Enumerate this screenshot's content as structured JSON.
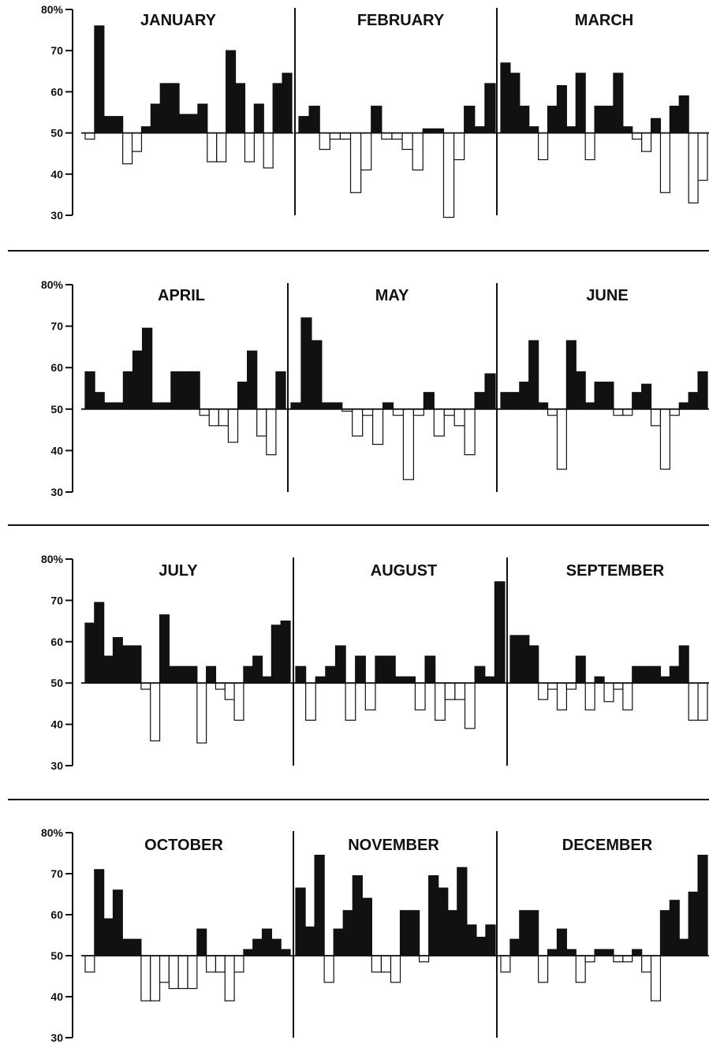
{
  "chart_data": {
    "type": "bar",
    "baseline": 50,
    "ylim": [
      30,
      80
    ],
    "y_ticks": [
      {
        "value": 80,
        "label": "80%"
      },
      {
        "value": 70,
        "label": "70"
      },
      {
        "value": 60,
        "label": "60"
      },
      {
        "value": 50,
        "label": "50"
      },
      {
        "value": 40,
        "label": "40"
      },
      {
        "value": 30,
        "label": "30"
      }
    ],
    "style": {
      "above_baseline_fill": "#111111",
      "below_baseline_fill": "#ffffff",
      "bar_outline": "#111111"
    },
    "months": [
      {
        "title": "JANUARY",
        "values": [
          48.5,
          76,
          54,
          54,
          42.5,
          45.5,
          51.5,
          57,
          62,
          62,
          54.5,
          54.5,
          57,
          43,
          43,
          70,
          62,
          43,
          57,
          41.5,
          62,
          64.5
        ]
      },
      {
        "title": "FEBRUARY",
        "values": [
          54,
          56.5,
          46,
          48.5,
          48.5,
          35.5,
          41,
          56.5,
          48.5,
          48.5,
          46,
          41,
          51,
          51,
          29.5,
          43.5,
          56.5,
          51.5,
          62
        ]
      },
      {
        "title": "MARCH",
        "values": [
          67,
          64.5,
          56.5,
          51.5,
          43.5,
          56.5,
          61.5,
          51.5,
          64.5,
          43.5,
          56.5,
          56.5,
          64.5,
          51.5,
          48.5,
          45.5,
          53.5,
          35.5,
          56.5,
          59,
          33,
          38.5
        ]
      },
      {
        "title": "APRIL",
        "values": [
          59,
          54,
          51.5,
          51.5,
          59,
          64,
          69.5,
          51.5,
          51.5,
          59,
          59,
          59,
          48.5,
          46,
          46,
          42,
          56.5,
          64,
          43.5,
          39,
          59
        ]
      },
      {
        "title": "MAY",
        "values": [
          51.5,
          72,
          66.5,
          51.5,
          51.5,
          49.5,
          43.5,
          48.5,
          41.5,
          51.5,
          48.5,
          33,
          48.5,
          54,
          43.5,
          48.5,
          46,
          39,
          54,
          58.5
        ]
      },
      {
        "title": "JUNE",
        "values": [
          54,
          54,
          56.5,
          66.5,
          51.5,
          48.5,
          35.5,
          66.5,
          59,
          51.5,
          56.5,
          56.5,
          48.5,
          48.5,
          54,
          56,
          46,
          35.5,
          48.5,
          51.5,
          54,
          59
        ]
      },
      {
        "title": "JULY",
        "values": [
          64.5,
          69.5,
          56.5,
          61,
          59,
          59,
          48.5,
          36,
          66.5,
          54,
          54,
          54,
          35.5,
          54,
          48.5,
          46,
          41,
          54,
          56.5,
          51.5,
          64,
          65
        ]
      },
      {
        "title": "AUGUST",
        "values": [
          54,
          41,
          51.5,
          54,
          59,
          41,
          56.5,
          43.5,
          56.5,
          56.5,
          51.5,
          51.5,
          43.5,
          56.5,
          41,
          46,
          46,
          39,
          54,
          51.5,
          74.5
        ]
      },
      {
        "title": "SEPTEMBER",
        "values": [
          61.5,
          61.5,
          59,
          46,
          48.5,
          43.5,
          48.5,
          56.5,
          43.5,
          51.5,
          45.5,
          48.5,
          43.5,
          54,
          54,
          54,
          51.5,
          54,
          59,
          41,
          41
        ]
      },
      {
        "title": "OCTOBER",
        "values": [
          46,
          71,
          59,
          66,
          54,
          54,
          39,
          39,
          43.5,
          42,
          42,
          42,
          56.5,
          46,
          46,
          39,
          46,
          51.5,
          54,
          56.5,
          54,
          51.5
        ]
      },
      {
        "title": "NOVEMBER",
        "values": [
          66.5,
          57,
          74.5,
          43.5,
          56.5,
          61,
          69.5,
          64,
          46,
          46,
          43.5,
          61,
          61,
          48.5,
          69.5,
          66.5,
          61,
          71.5,
          57.5,
          54.5,
          57.5
        ]
      },
      {
        "title": "DECEMBER",
        "values": [
          46,
          54,
          61,
          61,
          43.5,
          51.5,
          56.5,
          51.5,
          43.5,
          48.5,
          51.5,
          51.5,
          48.5,
          48.5,
          51.5,
          46,
          39,
          61,
          63.5,
          54,
          65.5,
          74.5
        ]
      }
    ]
  }
}
